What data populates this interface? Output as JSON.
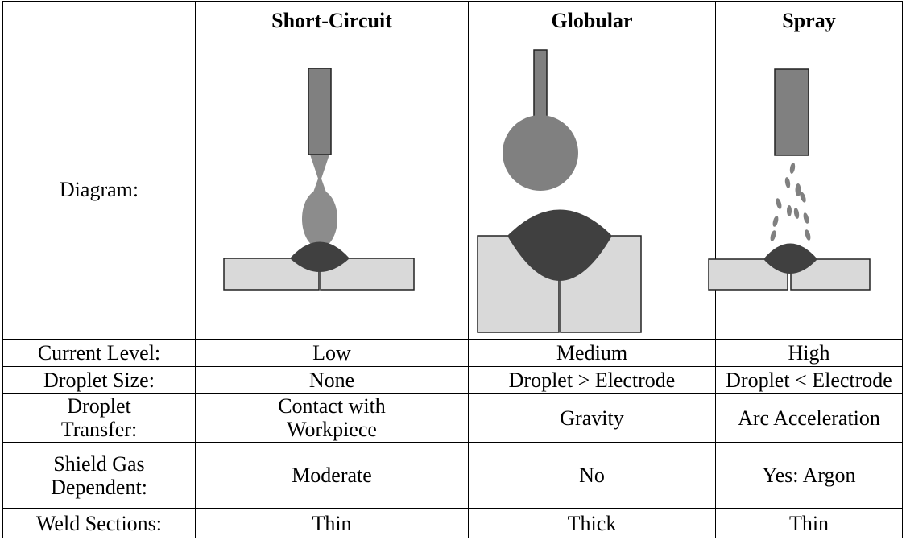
{
  "table": {
    "header": [
      "Short-Circuit",
      "Globular",
      "Spray"
    ],
    "diagram_label": "Diagram:",
    "rows": [
      {
        "label": "Current Level:",
        "cells": [
          "Low",
          "Medium",
          "High"
        ]
      },
      {
        "label": "Droplet Size:",
        "cells": [
          "None",
          "Droplet > Electrode",
          "Droplet < Electrode"
        ]
      },
      {
        "label": "Droplet Transfer:",
        "cells": [
          "Contact with Workpiece",
          "Gravity",
          "Arc Acceleration"
        ]
      },
      {
        "label": "Shield Gas Dependent:",
        "cells": [
          "Moderate",
          "No",
          "Yes: Argon"
        ]
      },
      {
        "label": "Weld Sections:",
        "cells": [
          "Thin",
          "Thick",
          "Thin"
        ]
      }
    ]
  }
}
